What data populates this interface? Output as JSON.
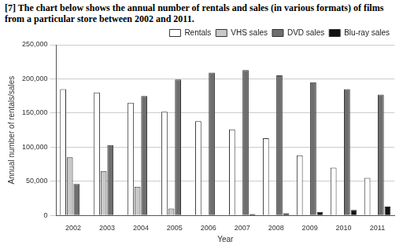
{
  "chart_data": {
    "type": "bar",
    "title": "[7] The chart below shows the annual number of rentals and sales (in various formats) of films from a particular store between 2002 and 2011.",
    "x_label": "Year",
    "y_label": "Annual number of rentals/sales",
    "categories": [
      "2002",
      "2003",
      "2004",
      "2005",
      "2006",
      "2007",
      "2008",
      "2009",
      "2010",
      "2011"
    ],
    "series": [
      {
        "name": "Rentals",
        "color": "#ffffff",
        "values": [
          185000,
          180000,
          165000,
          152000,
          138000,
          126000,
          113000,
          88000,
          70000,
          55000
        ]
      },
      {
        "name": "VHS sales",
        "color": "#c8c8c8",
        "values": [
          85000,
          65000,
          42000,
          10000,
          0,
          0,
          0,
          0,
          0,
          0
        ]
      },
      {
        "name": "DVD sales",
        "color": "#6e6e6e",
        "values": [
          46000,
          103000,
          175000,
          199000,
          209000,
          213000,
          205000,
          195000,
          185000,
          177000
        ]
      },
      {
        "name": "Blu-ray sales",
        "color": "#111111",
        "values": [
          0,
          0,
          0,
          0,
          0,
          2000,
          3000,
          5000,
          8000,
          13000
        ]
      }
    ],
    "ylim": [
      0,
      250000
    ],
    "yticks": [
      0,
      {
        "value": 50000,
        "label": "50,000"
      },
      {
        "value": 100000,
        "label": "100,000"
      },
      {
        "value": 150000,
        "label": "150,000"
      },
      {
        "value": 200000,
        "label": "200,000"
      },
      {
        "value": 250000,
        "label": "250,000"
      }
    ],
    "grid": true,
    "legend": "top-right"
  }
}
